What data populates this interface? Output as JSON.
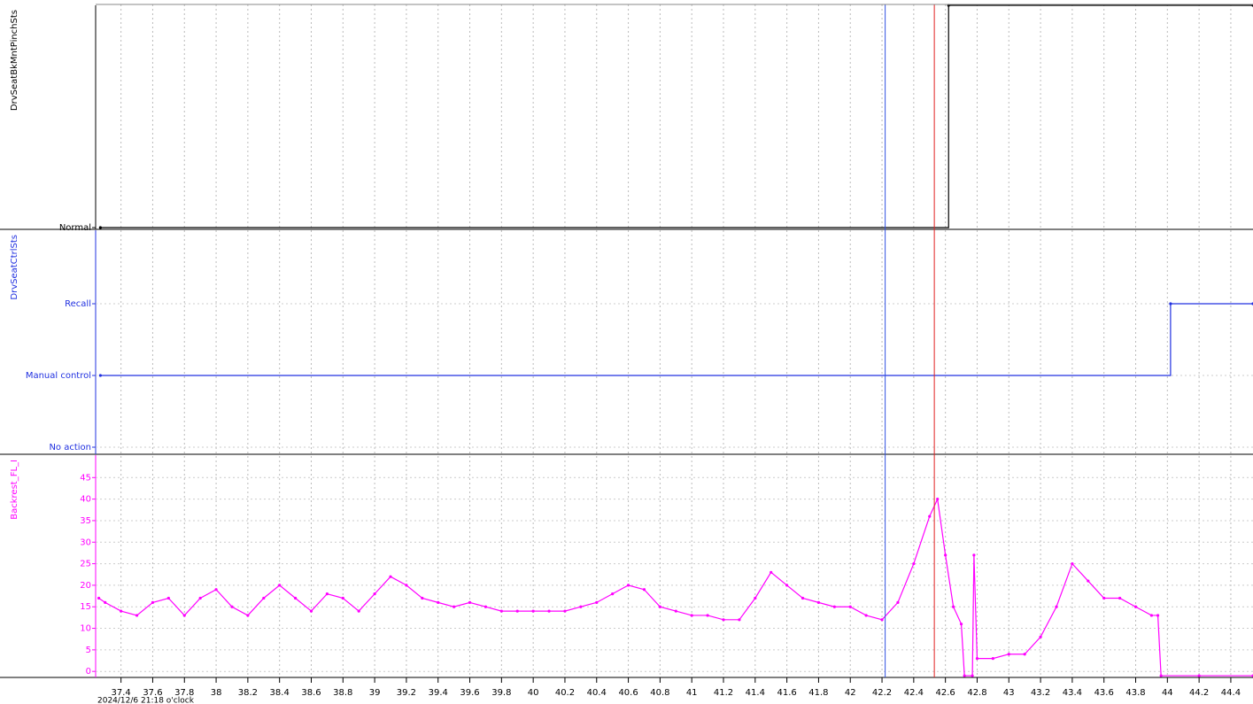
{
  "cursors": [
    {
      "x": 42.22,
      "color": "#3050e0"
    },
    {
      "x": 42.53,
      "color": "#e02020"
    }
  ],
  "chart_data": [
    {
      "type": "step",
      "ylabel": "DrvSeatBkMntPinchSts",
      "xlim": [
        37.24,
        44.54
      ],
      "ylim": [
        0,
        1
      ],
      "yticks": [
        {
          "value": 0,
          "label": "Normal"
        }
      ],
      "grid": false,
      "series": [
        {
          "color": "#000000",
          "x": [
            37.27,
            42.62,
            44.54
          ],
          "values": [
            0,
            1,
            1
          ]
        }
      ]
    },
    {
      "type": "step",
      "ylabel": "DrvSeatCtrlSts",
      "xlim": [
        37.24,
        44.54
      ],
      "ylim": [
        0,
        3
      ],
      "yticks": [
        {
          "value": 0,
          "label": "No action"
        },
        {
          "value": 1,
          "label": "Manual control"
        },
        {
          "value": 2,
          "label": "Recall"
        }
      ],
      "grid": true,
      "series": [
        {
          "color": "#2030e0",
          "x": [
            37.27,
            44.02,
            44.54
          ],
          "values": [
            1,
            2,
            2
          ]
        }
      ]
    },
    {
      "type": "line",
      "ylabel": "Backrest_FL_I",
      "xlim": [
        37.24,
        44.54
      ],
      "ylim": [
        -1.4,
        50.2
      ],
      "yticks": [
        0,
        5,
        10,
        15,
        20,
        25,
        30,
        35,
        40,
        45
      ],
      "grid": true,
      "xticks": [
        37.4,
        37.6,
        37.8,
        38,
        38.2,
        38.4,
        38.6,
        38.8,
        39,
        39.2,
        39.4,
        39.6,
        39.8,
        40,
        40.2,
        40.4,
        40.6,
        40.8,
        41,
        41.2,
        41.4,
        41.6,
        41.8,
        42,
        42.2,
        42.4,
        42.6,
        42.8,
        43,
        43.2,
        43.4,
        43.6,
        43.8,
        44,
        44.2,
        44.4
      ],
      "xlabel": "2024/12/6  21:18 o'clock",
      "series": [
        {
          "color": "#ff00ff",
          "x": [
            37.26,
            37.3,
            37.4,
            37.5,
            37.6,
            37.7,
            37.8,
            37.9,
            38.0,
            38.1,
            38.2,
            38.3,
            38.4,
            38.5,
            38.6,
            38.7,
            38.8,
            38.9,
            39.0,
            39.1,
            39.2,
            39.3,
            39.4,
            39.5,
            39.6,
            39.7,
            39.8,
            39.9,
            40.0,
            40.1,
            40.2,
            40.3,
            40.4,
            40.5,
            40.6,
            40.7,
            40.8,
            40.9,
            41.0,
            41.1,
            41.2,
            41.3,
            41.4,
            41.5,
            41.6,
            41.7,
            41.8,
            41.9,
            42.0,
            42.1,
            42.2,
            42.3,
            42.4,
            42.5,
            42.55,
            42.6,
            42.65,
            42.7,
            42.72,
            42.77,
            42.78,
            42.8,
            42.9,
            43.0,
            43.1,
            43.2,
            43.3,
            43.4,
            43.5,
            43.6,
            43.7,
            43.8,
            43.9,
            43.94,
            43.96,
            44.2,
            44.54
          ],
          "values": [
            17,
            16,
            14,
            13,
            16,
            17,
            13,
            17,
            19,
            15,
            13,
            17,
            20,
            17,
            14,
            18,
            17,
            14,
            18,
            22,
            20,
            17,
            16,
            15,
            16,
            15,
            14,
            14,
            14,
            14,
            14,
            15,
            16,
            18,
            20,
            19,
            15,
            14,
            13,
            13,
            12,
            12,
            17,
            23,
            20,
            17,
            16,
            15,
            15,
            13,
            12,
            16,
            25,
            36,
            40,
            27,
            15,
            11,
            -1,
            -1,
            27,
            3,
            3,
            4,
            4,
            8,
            15,
            25,
            21,
            17,
            17,
            15,
            13,
            13,
            -1,
            -1,
            -1
          ]
        }
      ]
    }
  ]
}
